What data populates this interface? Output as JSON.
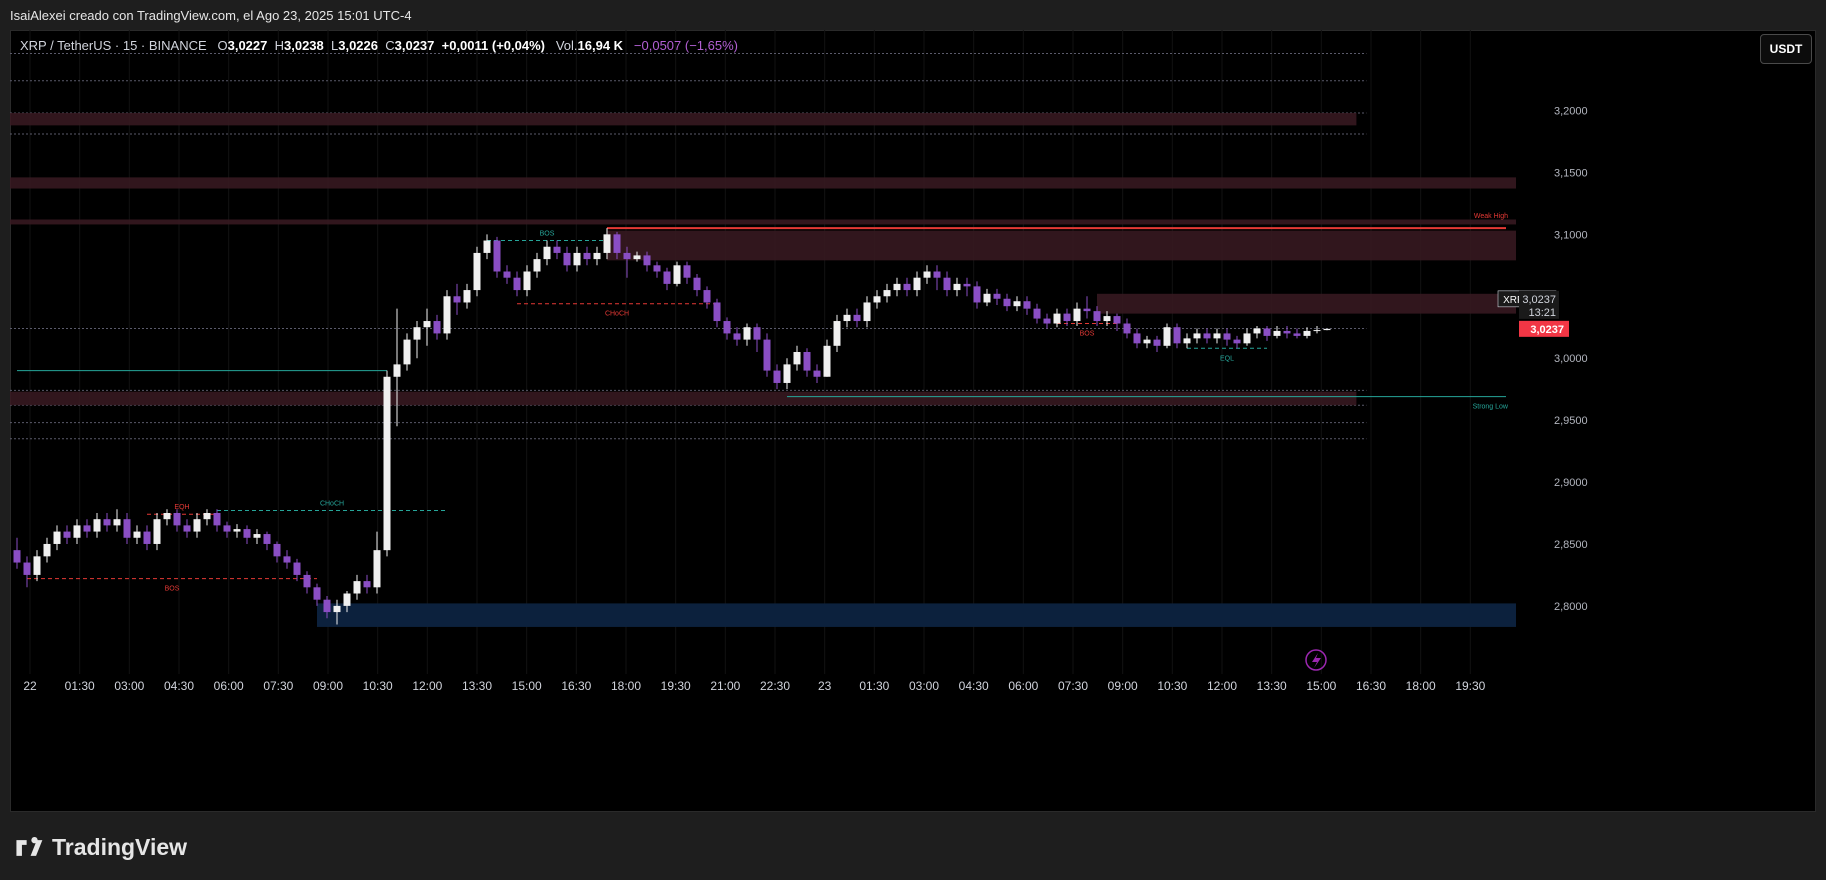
{
  "header": {
    "credit": "IsaiAlexei creado con TradingView.com, el Ago 23, 2025 15:01 UTC-4"
  },
  "legend": {
    "symbol": "XRP / TetherUS · 15 · BINANCE",
    "o_label": "O",
    "o_value": "3,0227",
    "h_label": "H",
    "h_value": "3,0238",
    "l_label": "L",
    "l_value": "3,0226",
    "c_label": "C",
    "c_value": "3,0237",
    "change": "+0,0011 (+0,04%)",
    "vol_label": "Vol.",
    "vol_value": "16,94 K",
    "extra_change": "−0,0507 (−1,65%)"
  },
  "currency_button": "USDT",
  "footer": {
    "brand": "TradingView"
  },
  "colors": {
    "bull": "#f0f0f0",
    "bear": "#8a4ec4",
    "bos_red": "#e53935",
    "choch_teal": "#26a69a",
    "supply_zone": "#3a1a22",
    "demand_zone": "#0d2340",
    "price_tag": "#f23645"
  },
  "chart_data": {
    "type": "candlestick",
    "symbol": "XRPUSDT",
    "timeframe": "15",
    "ylim": [
      2.745,
      3.265
    ],
    "y_ticks": [
      2.8,
      2.85,
      2.9,
      2.95,
      3.0,
      3.05,
      3.1,
      3.15,
      3.2
    ],
    "y_tick_labels": [
      "2,8000",
      "2,8500",
      "2,9000",
      "2,9500",
      "3,0000",
      "",
      "3,1000",
      "3,1500",
      "3,2000"
    ],
    "x_tick_labels": [
      "22",
      "01:30",
      "03:00",
      "04:30",
      "06:00",
      "07:30",
      "09:00",
      "10:30",
      "12:00",
      "13:30",
      "15:00",
      "16:30",
      "18:00",
      "19:30",
      "21:00",
      "22:30",
      "23",
      "01:30",
      "03:00",
      "04:30",
      "06:00",
      "07:30",
      "09:00",
      "10:30",
      "12:00",
      "13:30",
      "15:00",
      "16:30",
      "18:00",
      "19:30"
    ],
    "last_price": {
      "label": "3,0237",
      "value": 3.0237,
      "symbol_tag": "XRPUSDT",
      "countdown": "13:21"
    },
    "candles": [
      [
        2.845,
        2.835,
        2.855,
        2.83
      ],
      [
        2.835,
        2.825,
        2.84,
        2.815
      ],
      [
        2.825,
        2.84,
        2.845,
        2.82
      ],
      [
        2.84,
        2.85,
        2.855,
        2.835
      ],
      [
        2.85,
        2.86,
        2.865,
        2.845
      ],
      [
        2.86,
        2.855,
        2.865,
        2.85
      ],
      [
        2.855,
        2.865,
        2.87,
        2.85
      ],
      [
        2.865,
        2.86,
        2.87,
        2.855
      ],
      [
        2.86,
        2.87,
        2.875,
        2.855
      ],
      [
        2.87,
        2.865,
        2.875,
        2.86
      ],
      [
        2.865,
        2.87,
        2.878,
        2.86
      ],
      [
        2.87,
        2.855,
        2.875,
        2.85
      ],
      [
        2.855,
        2.86,
        2.865,
        2.85
      ],
      [
        2.86,
        2.85,
        2.865,
        2.845
      ],
      [
        2.85,
        2.87,
        2.875,
        2.845
      ],
      [
        2.87,
        2.875,
        2.878,
        2.865
      ],
      [
        2.875,
        2.865,
        2.878,
        2.86
      ],
      [
        2.865,
        2.86,
        2.87,
        2.855
      ],
      [
        2.86,
        2.87,
        2.875,
        2.855
      ],
      [
        2.87,
        2.875,
        2.878,
        2.865
      ],
      [
        2.875,
        2.865,
        2.878,
        2.86
      ],
      [
        2.865,
        2.86,
        2.868,
        2.855
      ],
      [
        2.86,
        2.862,
        2.866,
        2.855
      ],
      [
        2.862,
        2.855,
        2.865,
        2.85
      ],
      [
        2.855,
        2.858,
        2.862,
        2.85
      ],
      [
        2.858,
        2.85,
        2.86,
        2.845
      ],
      [
        2.85,
        2.84,
        2.852,
        2.835
      ],
      [
        2.84,
        2.835,
        2.845,
        2.83
      ],
      [
        2.835,
        2.825,
        2.838,
        2.82
      ],
      [
        2.825,
        2.815,
        2.828,
        2.81
      ],
      [
        2.815,
        2.805,
        2.818,
        2.8
      ],
      [
        2.805,
        2.795,
        2.808,
        2.79
      ],
      [
        2.795,
        2.8,
        2.805,
        2.785
      ],
      [
        2.8,
        2.81,
        2.812,
        2.795
      ],
      [
        2.81,
        2.82,
        2.825,
        2.805
      ],
      [
        2.82,
        2.815,
        2.825,
        2.81
      ],
      [
        2.815,
        2.845,
        2.86,
        2.81
      ],
      [
        2.845,
        2.985,
        2.99,
        2.84
      ],
      [
        2.985,
        2.995,
        3.04,
        2.945
      ],
      [
        2.995,
        3.015,
        3.02,
        2.99
      ],
      [
        3.015,
        3.025,
        3.03,
        3.0
      ],
      [
        3.025,
        3.03,
        3.04,
        3.01
      ],
      [
        3.03,
        3.02,
        3.035,
        3.015
      ],
      [
        3.02,
        3.05,
        3.055,
        3.015
      ],
      [
        3.05,
        3.045,
        3.06,
        3.035
      ],
      [
        3.045,
        3.055,
        3.06,
        3.04
      ],
      [
        3.055,
        3.085,
        3.09,
        3.05
      ],
      [
        3.085,
        3.095,
        3.1,
        3.08
      ],
      [
        3.095,
        3.07,
        3.098,
        3.065
      ],
      [
        3.07,
        3.065,
        3.075,
        3.06
      ],
      [
        3.065,
        3.055,
        3.07,
        3.05
      ],
      [
        3.055,
        3.07,
        3.075,
        3.05
      ],
      [
        3.07,
        3.08,
        3.085,
        3.065
      ],
      [
        3.08,
        3.09,
        3.095,
        3.075
      ],
      [
        3.09,
        3.085,
        3.095,
        3.08
      ],
      [
        3.085,
        3.075,
        3.09,
        3.07
      ],
      [
        3.075,
        3.085,
        3.09,
        3.07
      ],
      [
        3.085,
        3.08,
        3.09,
        3.075
      ],
      [
        3.08,
        3.085,
        3.09,
        3.075
      ],
      [
        3.085,
        3.1,
        3.105,
        3.08
      ],
      [
        3.1,
        3.085,
        3.102,
        3.08
      ],
      [
        3.085,
        3.08,
        3.09,
        3.065
      ],
      [
        3.08,
        3.083,
        3.086,
        3.078
      ],
      [
        3.083,
        3.075,
        3.086,
        3.07
      ],
      [
        3.075,
        3.07,
        3.078,
        3.065
      ],
      [
        3.07,
        3.06,
        3.073,
        3.055
      ],
      [
        3.06,
        3.075,
        3.078,
        3.058
      ],
      [
        3.075,
        3.065,
        3.078,
        3.06
      ],
      [
        3.065,
        3.055,
        3.068,
        3.05
      ],
      [
        3.055,
        3.045,
        3.058,
        3.04
      ],
      [
        3.045,
        3.03,
        3.048,
        3.025
      ],
      [
        3.03,
        3.02,
        3.033,
        3.015
      ],
      [
        3.02,
        3.015,
        3.025,
        3.01
      ],
      [
        3.015,
        3.025,
        3.028,
        3.01
      ],
      [
        3.025,
        3.015,
        3.028,
        3.005
      ],
      [
        3.015,
        2.99,
        3.02,
        2.985
      ],
      [
        2.99,
        2.98,
        2.995,
        2.975
      ],
      [
        2.98,
        2.995,
        3.0,
        2.975
      ],
      [
        2.995,
        3.005,
        3.01,
        2.99
      ],
      [
        3.005,
        2.99,
        3.008,
        2.985
      ],
      [
        2.99,
        2.985,
        2.995,
        2.98
      ],
      [
        2.985,
        3.01,
        3.015,
        2.985
      ],
      [
        3.01,
        3.03,
        3.035,
        3.005
      ],
      [
        3.03,
        3.035,
        3.04,
        3.025
      ],
      [
        3.035,
        3.03,
        3.04,
        3.025
      ],
      [
        3.03,
        3.045,
        3.05,
        3.025
      ],
      [
        3.045,
        3.05,
        3.055,
        3.04
      ],
      [
        3.05,
        3.055,
        3.06,
        3.045
      ],
      [
        3.055,
        3.06,
        3.065,
        3.05
      ],
      [
        3.06,
        3.055,
        3.065,
        3.05
      ],
      [
        3.055,
        3.065,
        3.07,
        3.05
      ],
      [
        3.065,
        3.07,
        3.075,
        3.06
      ],
      [
        3.07,
        3.065,
        3.075,
        3.055
      ],
      [
        3.065,
        3.055,
        3.07,
        3.05
      ],
      [
        3.055,
        3.06,
        3.065,
        3.05
      ],
      [
        3.06,
        3.058,
        3.065,
        3.05
      ],
      [
        3.058,
        3.045,
        3.062,
        3.04
      ],
      [
        3.045,
        3.052,
        3.056,
        3.042
      ],
      [
        3.052,
        3.048,
        3.056,
        3.043
      ],
      [
        3.048,
        3.042,
        3.052,
        3.038
      ],
      [
        3.042,
        3.046,
        3.05,
        3.038
      ],
      [
        3.046,
        3.04,
        3.05,
        3.035
      ],
      [
        3.04,
        3.032,
        3.044,
        3.028
      ],
      [
        3.032,
        3.028,
        3.036,
        3.024
      ],
      [
        3.028,
        3.036,
        3.04,
        3.025
      ],
      [
        3.036,
        3.03,
        3.04,
        3.026
      ],
      [
        3.03,
        3.04,
        3.045,
        3.026
      ],
      [
        3.04,
        3.038,
        3.05,
        3.032
      ],
      [
        3.038,
        3.03,
        3.042,
        3.026
      ],
      [
        3.03,
        3.034,
        3.038,
        3.026
      ],
      [
        3.034,
        3.028,
        3.036,
        3.022
      ],
      [
        3.028,
        3.02,
        3.032,
        3.016
      ],
      [
        3.02,
        3.012,
        3.024,
        3.008
      ],
      [
        3.012,
        3.015,
        3.018,
        3.008
      ],
      [
        3.015,
        3.01,
        3.018,
        3.005
      ],
      [
        3.01,
        3.025,
        3.028,
        3.008
      ],
      [
        3.025,
        3.012,
        3.028,
        3.008
      ],
      [
        3.012,
        3.016,
        3.02,
        3.008
      ],
      [
        3.016,
        3.02,
        3.024,
        3.012
      ],
      [
        3.02,
        3.016,
        3.024,
        3.012
      ],
      [
        3.016,
        3.02,
        3.024,
        3.012
      ],
      [
        3.02,
        3.015,
        3.024,
        3.01
      ],
      [
        3.015,
        3.012,
        3.018,
        3.008
      ],
      [
        3.012,
        3.02,
        3.024,
        3.01
      ],
      [
        3.02,
        3.024,
        3.026,
        3.016
      ],
      [
        3.024,
        3.018,
        3.026,
        3.014
      ],
      [
        3.018,
        3.022,
        3.026,
        3.016
      ],
      [
        3.022,
        3.02,
        3.026,
        3.016
      ],
      [
        3.02,
        3.018,
        3.024,
        3.016
      ],
      [
        3.018,
        3.022,
        3.025,
        3.016
      ],
      [
        3.022,
        3.0227,
        3.026,
        3.02
      ],
      [
        3.0227,
        3.0237,
        3.0238,
        3.0226
      ]
    ],
    "zones": [
      {
        "kind": "supply",
        "top": 3.198,
        "bottom": 3.188,
        "end": 0.9
      },
      {
        "kind": "supply",
        "top": 3.146,
        "bottom": 3.137,
        "end": 1.0
      },
      {
        "kind": "supply",
        "top": 3.112,
        "bottom": 3.108,
        "end": 1.0
      },
      {
        "kind": "supply",
        "top": 3.103,
        "bottom": 3.079,
        "end": 1.0,
        "start_candle": 59
      },
      {
        "kind": "supply",
        "top": 3.052,
        "bottom": 3.036,
        "end": 1.0,
        "start_candle": 108
      },
      {
        "kind": "supply",
        "top": 2.973,
        "bottom": 2.962,
        "end": 0.9
      },
      {
        "kind": "demand",
        "top": 2.802,
        "bottom": 2.783,
        "end": 1.0,
        "start_candle": 30
      }
    ],
    "levels": [
      {
        "price": 3.246,
        "end": 0.9
      },
      {
        "price": 3.224,
        "end": 0.9
      },
      {
        "price": 3.198,
        "end": 0.9
      },
      {
        "price": 3.181,
        "end": 0.9
      },
      {
        "price": 3.024,
        "end": 0.9
      },
      {
        "price": 2.974,
        "end": 0.9
      },
      {
        "price": 2.962,
        "end": 0.9
      },
      {
        "price": 2.948,
        "end": 0.9
      },
      {
        "price": 2.935,
        "end": 0.9
      }
    ],
    "structure_lines": [
      {
        "label": "EQH",
        "price": 2.874,
        "from": 13,
        "to": 20,
        "color": "red",
        "dash": true,
        "label_pos": "above"
      },
      {
        "label": "BOS",
        "price": 2.822,
        "from": 1,
        "to": 30,
        "color": "red",
        "dash": true,
        "label_pos": "below"
      },
      {
        "label": "CHoCH",
        "price": 2.877,
        "from": 20,
        "to": 43,
        "color": "teal",
        "dash": true,
        "label_pos": "above"
      },
      {
        "label": "BOS",
        "price": 3.095,
        "from": 47,
        "to": 59,
        "color": "teal",
        "dash": true,
        "label_pos": "above"
      },
      {
        "label": "CHoCH",
        "price": 3.044,
        "from": 50,
        "to": 70,
        "color": "red",
        "dash": true,
        "label_pos": "below"
      },
      {
        "label": "BOS",
        "price": 3.028,
        "from": 104,
        "to": 110,
        "color": "red",
        "dash": true,
        "label_pos": "below"
      },
      {
        "label": "EQL",
        "price": 3.008,
        "from": 117,
        "to": 125,
        "color": "teal",
        "dash": true,
        "label_pos": "below"
      },
      {
        "label": "",
        "price": 2.99,
        "from": 0,
        "to": 37,
        "color": "teal",
        "dash": false,
        "label_pos": "none"
      }
    ],
    "swing_labels": [
      {
        "label": "Weak High",
        "price": 3.105,
        "from": 59,
        "color": "red"
      },
      {
        "label": "Strong Low",
        "price": 2.969,
        "from": 77,
        "color": "teal"
      }
    ]
  }
}
